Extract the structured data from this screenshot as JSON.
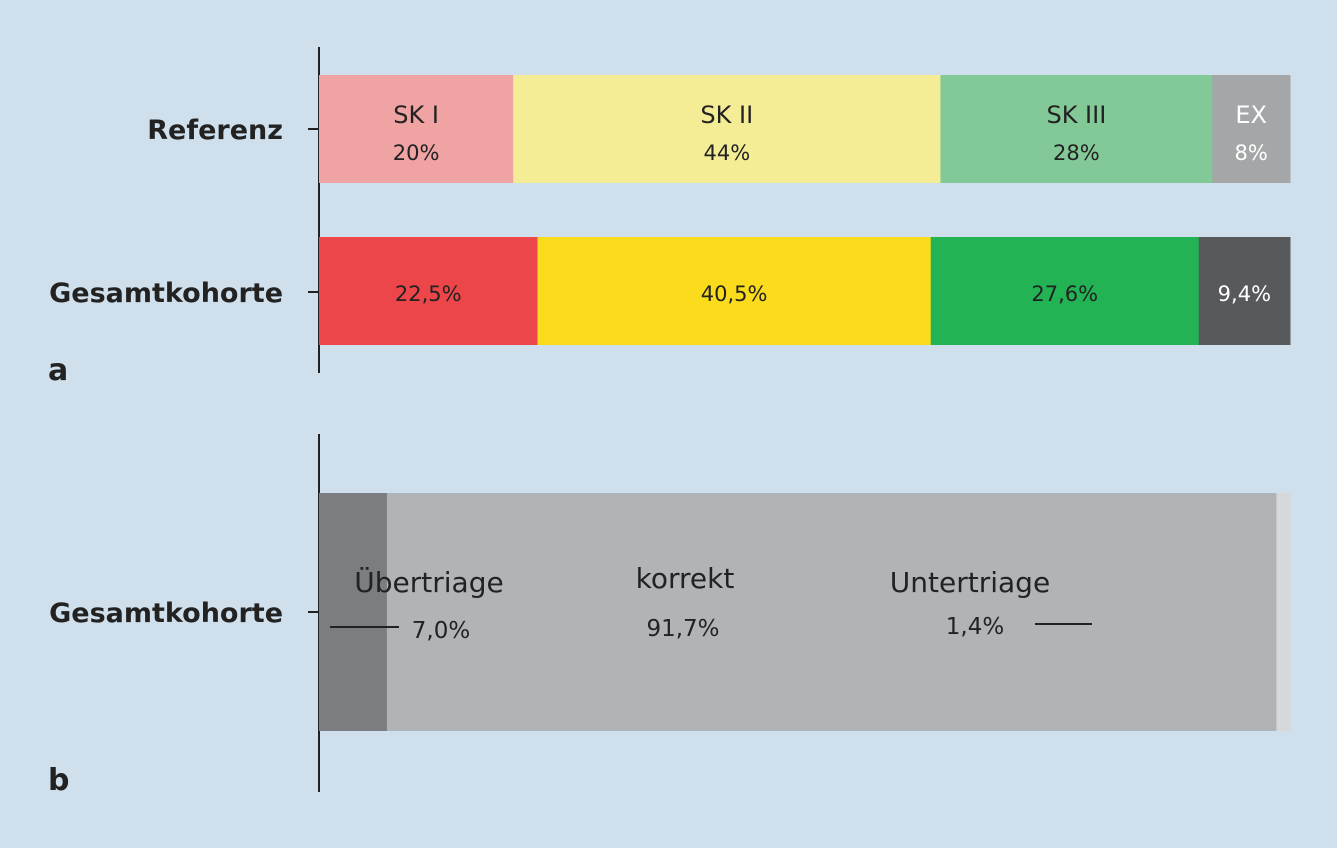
{
  "chart_data": [
    {
      "type": "bar",
      "orientation": "horizontal",
      "stacked": true,
      "panel_label": "a",
      "categories": [
        "Referenz",
        "Gesamtkohorte"
      ],
      "bars": [
        {
          "category": "Referenz",
          "segments": [
            {
              "label": "SK I",
              "value_text": "20%",
              "value": 20,
              "color": "#efa3a3",
              "text_color": "#222222"
            },
            {
              "label": "SK II",
              "value_text": "44%",
              "value": 44,
              "color": "#f5ec96",
              "text_color": "#222222"
            },
            {
              "label": "SK III",
              "value_text": "28%",
              "value": 28,
              "color": "#83c997",
              "text_color": "#222222"
            },
            {
              "label": "EX",
              "value_text": "8%",
              "value": 8,
              "color": "#a4a6a8",
              "text_color": "#ffffff"
            }
          ]
        },
        {
          "category": "Gesamtkohorte",
          "segments": [
            {
              "label": "",
              "value_text": "22,5%",
              "value": 22.5,
              "color": "#ec454a",
              "text_color": "#222222"
            },
            {
              "label": "",
              "value_text": "40,5%",
              "value": 40.5,
              "color": "#fbdc1c",
              "text_color": "#222222"
            },
            {
              "label": "",
              "value_text": "27,6%",
              "value": 27.6,
              "color": "#23b354",
              "text_color": "#222222"
            },
            {
              "label": "",
              "value_text": "9,4%",
              "value": 9.4,
              "color": "#58595b",
              "text_color": "#ffffff"
            }
          ]
        }
      ]
    },
    {
      "type": "bar",
      "orientation": "horizontal",
      "stacked": true,
      "panel_label": "b",
      "categories": [
        "Gesamtkohorte"
      ],
      "bars": [
        {
          "category": "Gesamtkohorte",
          "segments": [
            {
              "label": "Übertriage",
              "value_text": "7,0%",
              "value": 7.0,
              "color": "#7b7d80"
            },
            {
              "label": "korrekt",
              "value_text": "91,7%",
              "value": 91.7,
              "color": "#b1b4b7"
            },
            {
              "label": "Untertriage",
              "value_text": "1,4%",
              "value": 1.4,
              "color": "#d6d8da"
            }
          ]
        }
      ]
    }
  ]
}
